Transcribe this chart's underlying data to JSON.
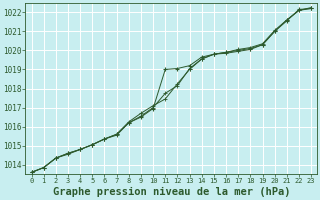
{
  "title": "Graphe pression niveau de la mer (hPa)",
  "bg_color": "#c8eef0",
  "plot_bg_color": "#c8eef0",
  "grid_color": "#aadddd",
  "line_color": "#2d5a2d",
  "marker_color": "#2d5a2d",
  "xlim": [
    -0.5,
    23.5
  ],
  "ylim": [
    1013.5,
    1022.5
  ],
  "yticks": [
    1014,
    1015,
    1016,
    1017,
    1018,
    1019,
    1020,
    1021,
    1022
  ],
  "xticks": [
    0,
    1,
    2,
    3,
    4,
    5,
    6,
    7,
    8,
    9,
    10,
    11,
    12,
    13,
    14,
    15,
    16,
    17,
    18,
    19,
    20,
    21,
    22,
    23
  ],
  "series": [
    [
      1013.6,
      1013.85,
      1014.35,
      1014.55,
      1014.8,
      1015.05,
      1015.35,
      1015.55,
      1016.2,
      1016.55,
      1017.0,
      1017.75,
      1018.15,
      1019.05,
      1019.55,
      1019.8,
      1019.85,
      1019.95,
      1020.05,
      1020.3,
      1021.0,
      1021.6,
      1022.1,
      1022.2
    ],
    [
      1013.6,
      1013.85,
      1014.35,
      1014.6,
      1014.8,
      1015.05,
      1015.35,
      1015.6,
      1016.25,
      1016.7,
      1017.1,
      1017.45,
      1018.25,
      1019.0,
      1019.55,
      1019.8,
      1019.9,
      1020.05,
      1020.15,
      1020.35,
      1021.05,
      1021.6,
      1022.1,
      1022.25
    ],
    [
      1013.6,
      1013.85,
      1014.35,
      1014.6,
      1014.8,
      1015.05,
      1015.35,
      1015.6,
      1016.2,
      1016.5,
      1016.95,
      1019.0,
      1019.05,
      1019.2,
      1019.65,
      1019.8,
      1019.9,
      1020.0,
      1020.1,
      1020.3,
      1021.0,
      1021.55,
      1022.15,
      1022.2
    ]
  ],
  "marker_series": [
    2
  ],
  "title_fontsize": 7.5,
  "tick_fontsize": 5.5
}
